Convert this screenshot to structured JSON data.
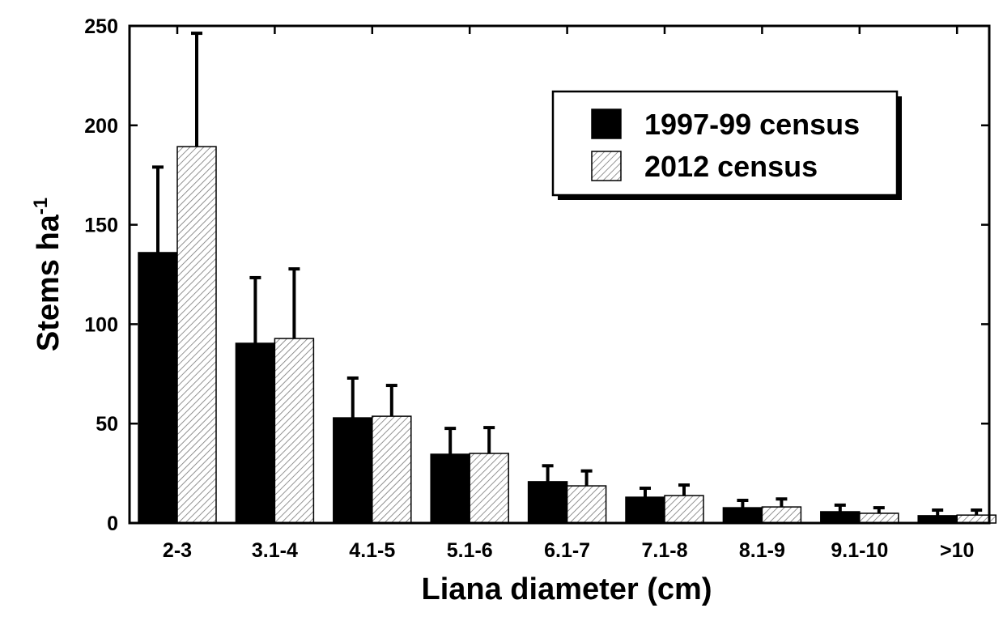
{
  "chart_data": {
    "type": "bar",
    "xlabel": "Liana diameter (cm)",
    "ylabel": "Stems ha",
    "ylabel_sup": "-1",
    "categories": [
      "2-3",
      "3.1-4",
      "4.1-5",
      "5.1-6",
      "6.1-7",
      "7.1-8",
      "8.1-9",
      "9.1-10",
      ">10"
    ],
    "series": [
      {
        "name": "1997-99 census",
        "color": "#000000",
        "fill": "solid",
        "values": [
          136,
          90.4,
          52.9,
          34.6,
          20.8,
          13,
          7.7,
          5.7,
          3.7
        ],
        "errors": [
          43,
          33,
          20,
          13,
          8,
          4.5,
          3.7,
          3.3,
          2.8
        ]
      },
      {
        "name": "2012 census",
        "color": "#000000",
        "fill": "hatch",
        "values": [
          189.3,
          92.8,
          53.7,
          35,
          18.7,
          13.8,
          8.1,
          4.9,
          4
        ],
        "errors": [
          57,
          35,
          15.5,
          13,
          7.5,
          5.3,
          4,
          2.8,
          2.5
        ]
      }
    ],
    "ylim": [
      0,
      250
    ],
    "yticks": [
      0,
      50,
      100,
      150,
      200,
      250
    ],
    "grid": false,
    "legend": "upper right"
  }
}
